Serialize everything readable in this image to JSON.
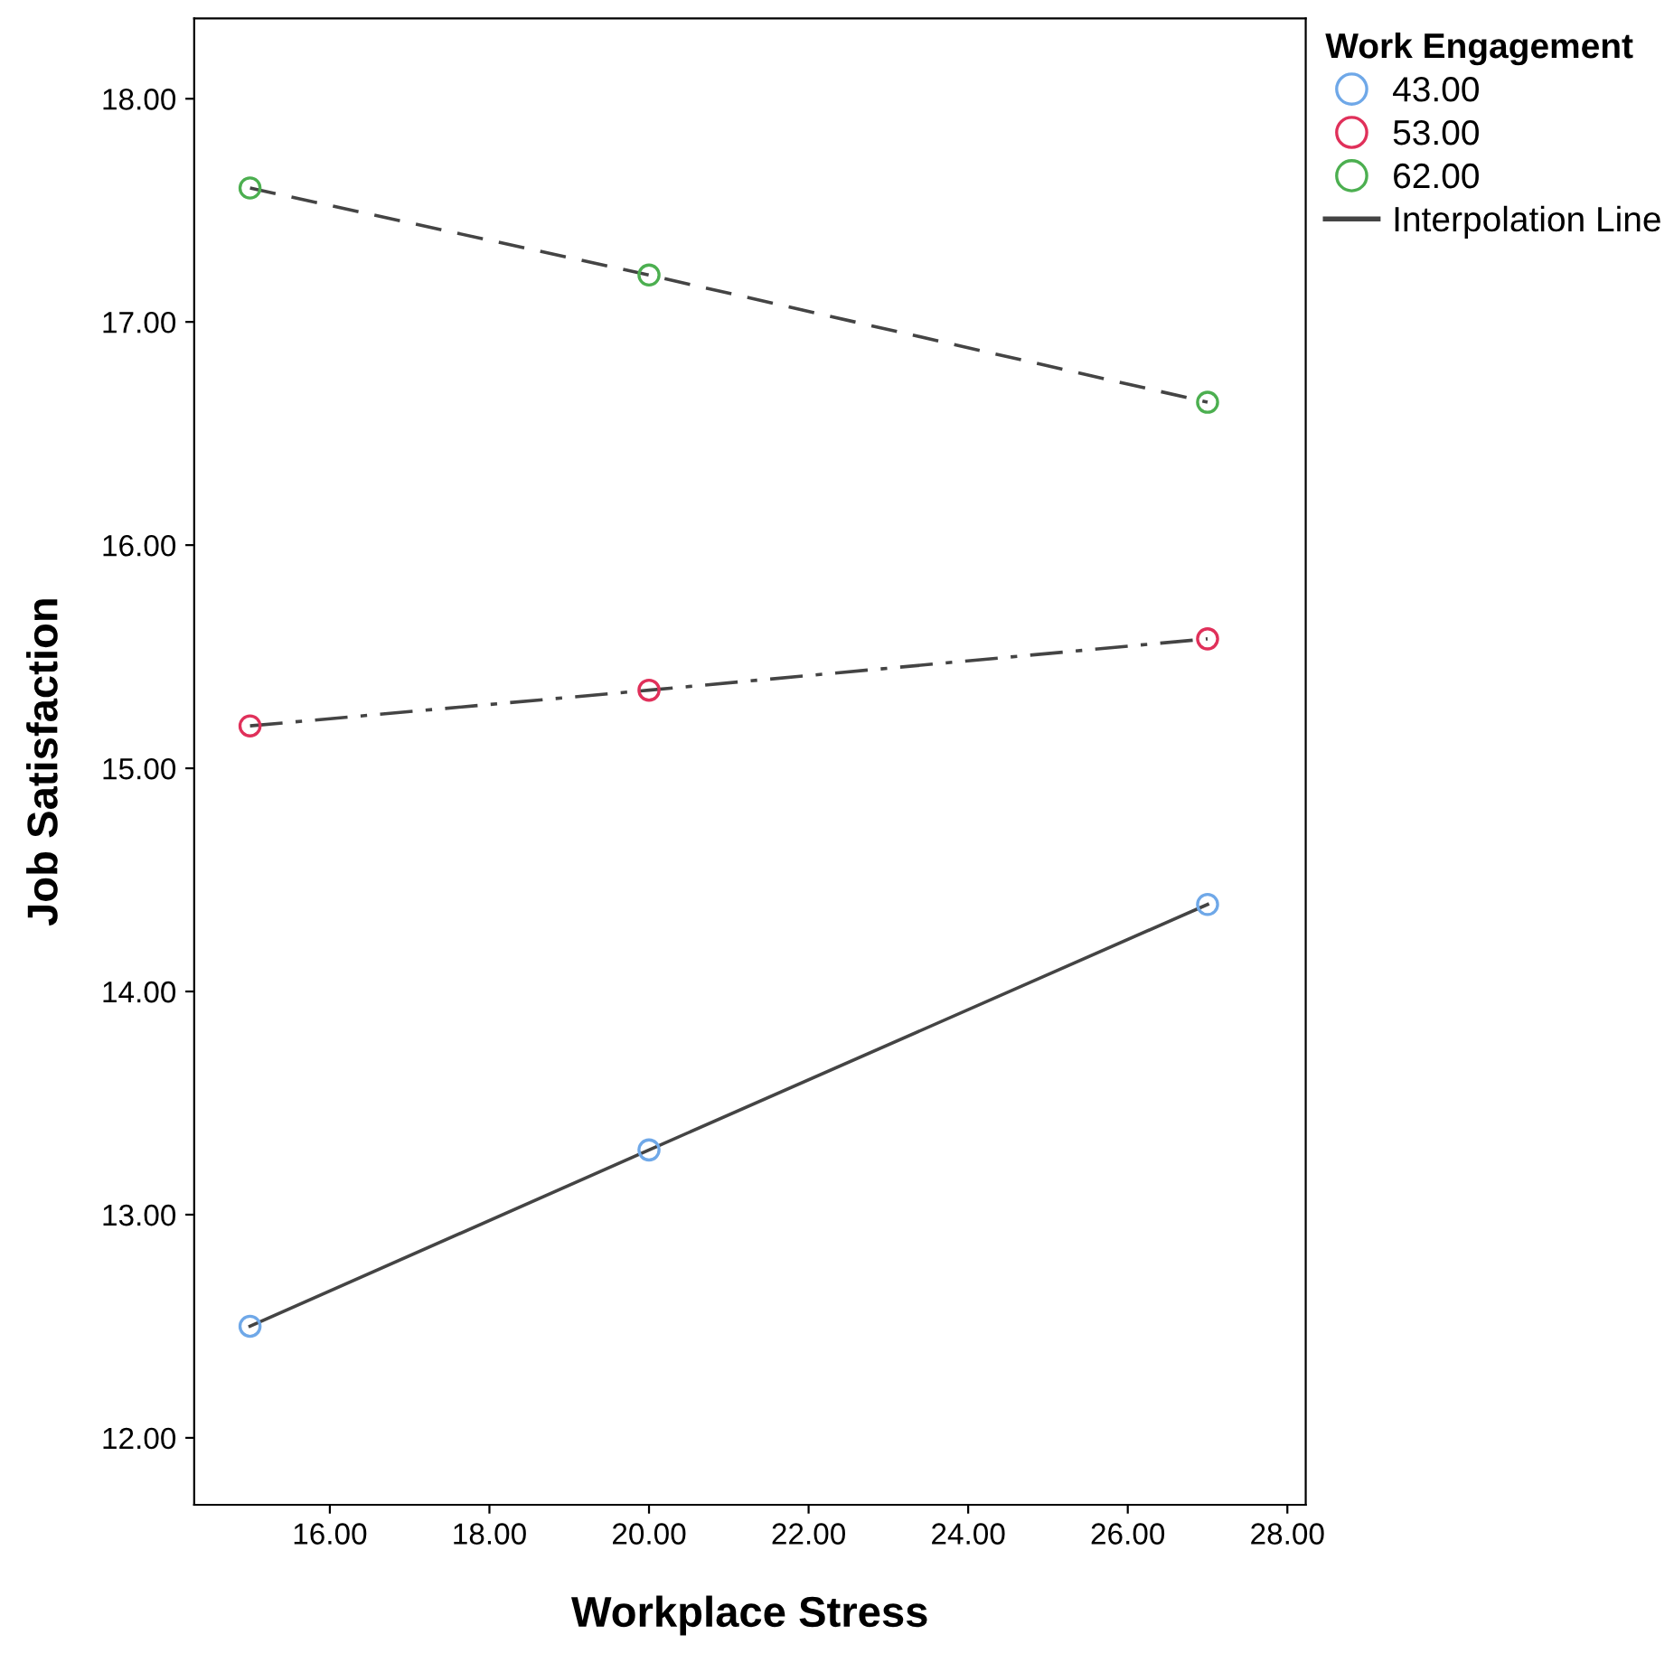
{
  "chart_data": {
    "type": "line",
    "xlabel": "Workplace Stress",
    "ylabel": "Job Satisfaction",
    "legend_title": "Work Engagement",
    "legend": "top right",
    "grid": false,
    "marker": "circle",
    "x": [
      15,
      20,
      27
    ],
    "xlim": [
      14.3,
      28.23
    ],
    "xticks": [
      {
        "value": 16,
        "label": "16.00"
      },
      {
        "value": 18,
        "label": "18.00"
      },
      {
        "value": 20,
        "label": "20.00"
      },
      {
        "value": 22,
        "label": "22.00"
      },
      {
        "value": 24,
        "label": "24.00"
      },
      {
        "value": 26,
        "label": "26.00"
      },
      {
        "value": 28,
        "label": "28.00"
      }
    ],
    "ylim": [
      11.7,
      18.36
    ],
    "yticks": [
      {
        "value": 12,
        "label": "12.00"
      },
      {
        "value": 13,
        "label": "13.00"
      },
      {
        "value": 14,
        "label": "14.00"
      },
      {
        "value": 15,
        "label": "15.00"
      },
      {
        "value": 16,
        "label": "16.00"
      },
      {
        "value": 17,
        "label": "17.00"
      },
      {
        "value": 18,
        "label": "18.00"
      }
    ],
    "series": [
      {
        "name": "43.00",
        "color": "#6fa8e8",
        "line_style": "solid",
        "values": [
          12.5,
          13.29,
          14.39
        ]
      },
      {
        "name": "53.00",
        "color": "#e0305a",
        "line_style": "dashdot",
        "values": [
          15.19,
          15.35,
          15.58
        ]
      },
      {
        "name": "62.00",
        "color": "#4caf50",
        "line_style": "dashed",
        "values": [
          17.6,
          17.21,
          16.64
        ]
      },
      {
        "name": "Interpolation Line",
        "color": "#444444",
        "line_style": "solid",
        "marker": "none",
        "values": [
          null,
          null,
          null
        ]
      }
    ]
  }
}
